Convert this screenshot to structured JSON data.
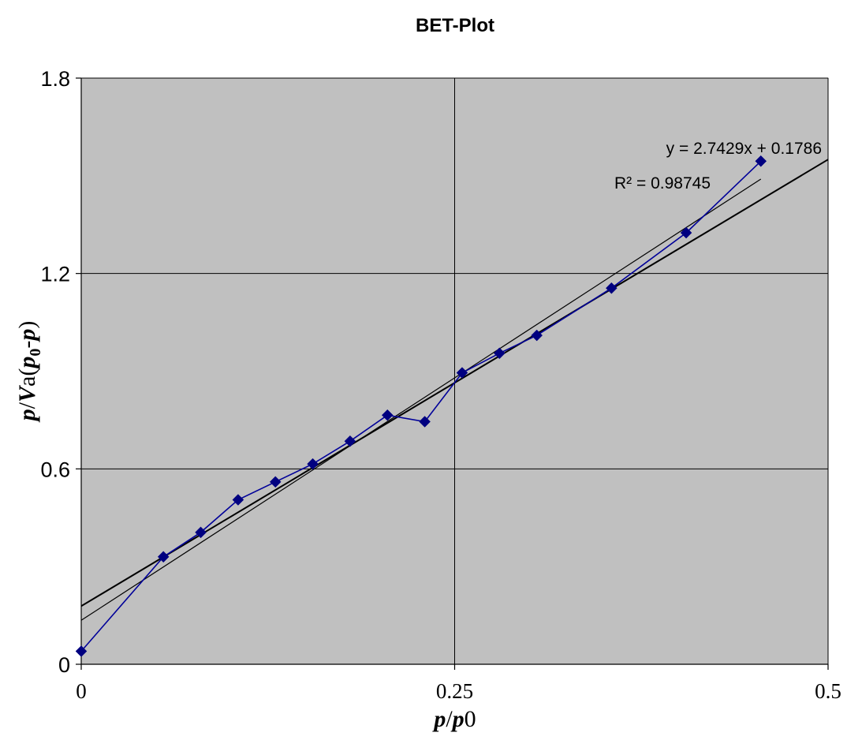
{
  "chart_data": {
    "type": "scatter",
    "title": "BET-Plot",
    "xlabel": {
      "p1": "p",
      "slash": "/",
      "p2": "p",
      "tail": "0"
    },
    "ylabel": {
      "p": "p",
      "slash1": "/",
      "V": "V",
      "a": "a(",
      "p0": "p",
      "sub0": "0",
      "minus": "-",
      "p3": "p",
      "close": ")"
    },
    "xlim": [
      0,
      0.5
    ],
    "ylim": [
      0,
      1.8
    ],
    "x_ticks": [
      0,
      0.25,
      0.5
    ],
    "x_tick_labels": [
      "0",
      "0.25",
      "0.5"
    ],
    "y_ticks": [
      0,
      0.6,
      1.2,
      1.8
    ],
    "y_tick_labels": [
      "0",
      "0.6",
      "1.2",
      "1.8"
    ],
    "grid": true,
    "legend": "none",
    "colors": {
      "plot_bg": "#C0C0C0",
      "series": "#000099",
      "marker": "#000080",
      "fit": "#000000",
      "grid": "#000000"
    },
    "series": [
      {
        "marker": "diamond",
        "points": [
          {
            "x": 0.0,
            "y": 0.04
          },
          {
            "x": 0.055,
            "y": 0.33
          },
          {
            "x": 0.08,
            "y": 0.405
          },
          {
            "x": 0.105,
            "y": 0.505
          },
          {
            "x": 0.13,
            "y": 0.56
          },
          {
            "x": 0.155,
            "y": 0.615
          },
          {
            "x": 0.18,
            "y": 0.685
          },
          {
            "x": 0.205,
            "y": 0.765
          },
          {
            "x": 0.23,
            "y": 0.745
          },
          {
            "x": 0.255,
            "y": 0.895
          },
          {
            "x": 0.28,
            "y": 0.955
          },
          {
            "x": 0.305,
            "y": 1.01
          },
          {
            "x": 0.355,
            "y": 1.155
          },
          {
            "x": 0.405,
            "y": 1.325
          },
          {
            "x": 0.455,
            "y": 1.545
          }
        ]
      }
    ],
    "fit_lines": [
      {
        "x": [
          0,
          0.5
        ],
        "y": [
          0.1786,
          1.55005
        ]
      },
      {
        "x": [
          0,
          0.455
        ],
        "y": [
          0.135,
          1.49
        ]
      }
    ],
    "annotations": {
      "equation": "y = 2.7429x + 0.1786",
      "r2": "R² = 0.98745"
    }
  }
}
